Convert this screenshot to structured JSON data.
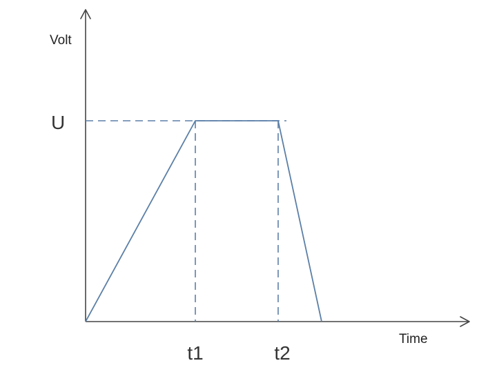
{
  "chart_data": {
    "type": "line",
    "title": "",
    "xlabel": "Time",
    "ylabel": "Volt",
    "x_ticks": [
      "t1",
      "t2"
    ],
    "y_ticks": [
      "U"
    ],
    "series": [
      {
        "values": [
          {
            "x": "0",
            "y": "0"
          },
          {
            "x": "t1",
            "y": "U"
          },
          {
            "x": "t2",
            "y": "U"
          },
          {
            "x": "t2 + 0.5(t2 - t1)",
            "y": "0"
          }
        ]
      }
    ],
    "reference_lines": [
      {
        "orientation": "horizontal",
        "at": "U",
        "from": "0",
        "to": "t2",
        "style": "dashed"
      },
      {
        "orientation": "vertical",
        "at": "t1",
        "from": "0",
        "to": "U",
        "style": "dashed"
      },
      {
        "orientation": "vertical",
        "at": "t2",
        "from": "0",
        "to": "U",
        "style": "dashed"
      }
    ],
    "grid": false,
    "legend": "none",
    "colors": {
      "series": "#5b7fa6",
      "axes": "#444444",
      "text": "#222222"
    }
  }
}
